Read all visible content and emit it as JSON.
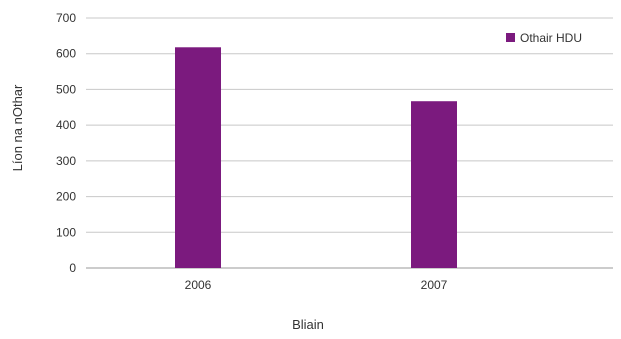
{
  "chart_data": {
    "type": "bar",
    "title": "",
    "xlabel": "Bliain",
    "ylabel": "Líon na nOthar",
    "categories": [
      "2006",
      "2007"
    ],
    "series": [
      {
        "name": "Othair HDU",
        "values": [
          618,
          467
        ],
        "color": "#7b1a7e"
      }
    ],
    "ylim": [
      0,
      700
    ],
    "yticks": [
      "0",
      "100",
      "200",
      "300",
      "400",
      "500",
      "600",
      "700"
    ],
    "grid": true,
    "legend_position": "top-right"
  }
}
